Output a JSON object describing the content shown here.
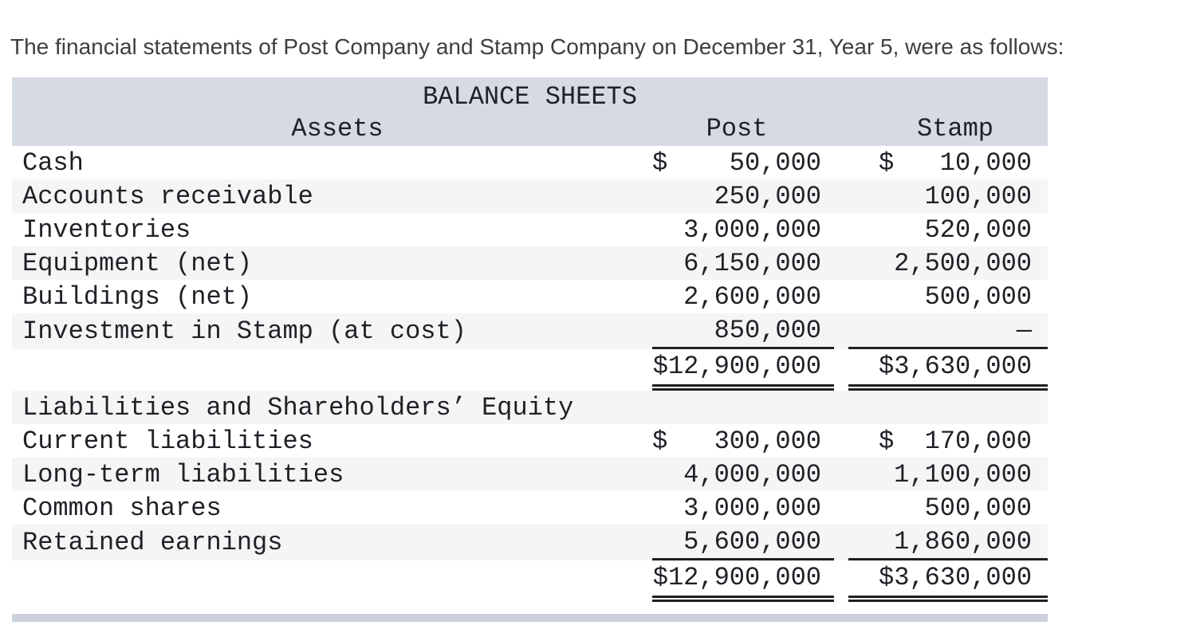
{
  "intro": {
    "text": "The financial statements of Post Company and Stamp Company on December 31, Year 5, were as follows:"
  },
  "table": {
    "title": "BALANCE SHEETS",
    "columns": {
      "assets": "Assets",
      "post": "Post",
      "stamp": "Stamp"
    },
    "assets_rows": [
      {
        "label": "Cash",
        "post_sign": "$",
        "post": "50,000",
        "stamp_sign": "$",
        "stamp": "10,000"
      },
      {
        "label": "Accounts receivable",
        "post": "250,000",
        "stamp": "100,000"
      },
      {
        "label": "Inventories",
        "post": "3,000,000",
        "stamp": "520,000"
      },
      {
        "label": "Equipment (net)",
        "post": "6,150,000",
        "stamp": "2,500,000"
      },
      {
        "label": "Buildings (net)",
        "post": "2,600,000",
        "stamp": "500,000"
      },
      {
        "label": "Investment in Stamp (at cost)",
        "post": "850,000",
        "stamp": "—"
      }
    ],
    "assets_total": {
      "post": "$12,900,000",
      "stamp": "$3,630,000"
    },
    "liabilities_header": "Liabilities and Shareholders’ Equity",
    "liabilities_rows": [
      {
        "label": "Current liabilities",
        "post_sign": "$",
        "post": "300,000",
        "stamp_sign": "$",
        "stamp": "170,000"
      },
      {
        "label": "Long-term liabilities",
        "post": "4,000,000",
        "stamp": "1,100,000"
      },
      {
        "label": "Common shares",
        "post": "3,000,000",
        "stamp": "500,000"
      },
      {
        "label": "Retained earnings",
        "post": "5,600,000",
        "stamp": "1,860,000"
      }
    ],
    "liabilities_total": {
      "post": "$12,900,000",
      "stamp": "$3,630,000"
    }
  },
  "colors": {
    "header_bg": "#d5dae3",
    "stripe_bg": "#f5f5f6",
    "next_section_bar_bg": "#ccd2dc",
    "rule_line": "#1f1f1f",
    "table_text": "#1e2126",
    "intro_text": "#3c4043"
  }
}
